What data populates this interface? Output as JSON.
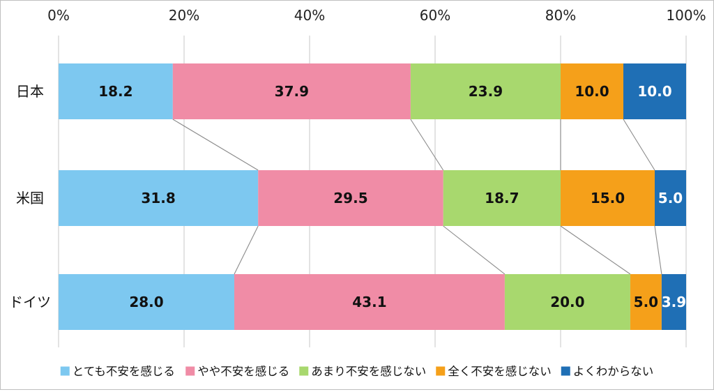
{
  "chart_data": {
    "type": "bar",
    "orientation": "horizontal",
    "stacked": "percent",
    "xlim": [
      0,
      100
    ],
    "x_ticks": [
      "0%",
      "20%",
      "40%",
      "60%",
      "80%",
      "100%"
    ],
    "categories": [
      "日本",
      "米国",
      "ドイツ"
    ],
    "series": [
      {
        "name": "とても不安を感じる",
        "values": [
          18.2,
          31.8,
          28.0
        ],
        "labels": [
          "18.2",
          "31.8",
          "28.0"
        ],
        "color": "#7dc8f0",
        "label_color": "#111111"
      },
      {
        "name": "やや不安を感じる",
        "values": [
          37.9,
          29.5,
          43.1
        ],
        "labels": [
          "37.9",
          "29.5",
          "43.1"
        ],
        "color": "#f08ca6",
        "label_color": "#111111"
      },
      {
        "name": "あまり不安を感じない",
        "values": [
          23.9,
          18.7,
          20.0
        ],
        "labels": [
          "23.9",
          "18.7",
          "20.0"
        ],
        "color": "#a8d86e",
        "label_color": "#111111"
      },
      {
        "name": "全く不安を感じない",
        "values": [
          10.0,
          15.0,
          5.0
        ],
        "labels": [
          "10.0",
          "15.0",
          "5.0"
        ],
        "color": "#f5a01a",
        "label_color": "#111111"
      },
      {
        "name": "よくわからない",
        "values": [
          10.0,
          5.0,
          3.9
        ],
        "labels": [
          "10.0",
          "5.0",
          "3.9"
        ],
        "color": "#1f6fb5",
        "label_color": "#ffffff"
      }
    ],
    "gridlines": true,
    "series_connector_lines": true,
    "legend_position": "bottom"
  }
}
